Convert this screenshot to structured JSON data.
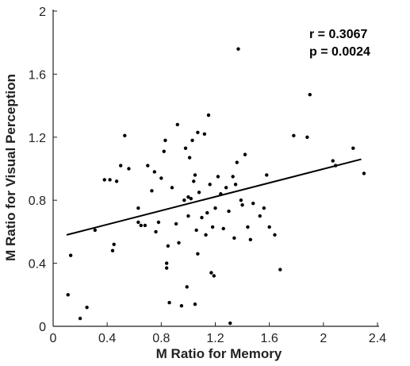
{
  "chart_data": {
    "type": "scatter",
    "title": "",
    "xlabel": "M Ratio for Memory",
    "ylabel": "M Ratio for Visual Perception",
    "xlim": [
      0,
      2.4
    ],
    "ylim": [
      0,
      2
    ],
    "x_ticks": [
      "0",
      "0.4",
      "0.8",
      "1.2",
      "1.6",
      "2",
      "2.4"
    ],
    "y_ticks": [
      "0",
      "0.4",
      "0.8",
      "1.2",
      "1.6",
      "2"
    ],
    "grid": false,
    "annotations": {
      "r": "r = 0.3067",
      "p": "p = 0.0024"
    },
    "regression_line": {
      "x": [
        0.1,
        2.28
      ],
      "y": [
        0.58,
        1.06
      ]
    },
    "points": [
      {
        "x": 0.11,
        "y": 0.2
      },
      {
        "x": 0.2,
        "y": 0.05
      },
      {
        "x": 0.25,
        "y": 0.12
      },
      {
        "x": 0.13,
        "y": 0.45
      },
      {
        "x": 0.31,
        "y": 0.61
      },
      {
        "x": 0.38,
        "y": 0.93
      },
      {
        "x": 0.42,
        "y": 0.93
      },
      {
        "x": 0.44,
        "y": 0.48
      },
      {
        "x": 0.45,
        "y": 0.52
      },
      {
        "x": 0.47,
        "y": 0.92
      },
      {
        "x": 0.5,
        "y": 1.02
      },
      {
        "x": 0.53,
        "y": 1.21
      },
      {
        "x": 0.56,
        "y": 1.0
      },
      {
        "x": 0.63,
        "y": 0.75
      },
      {
        "x": 0.63,
        "y": 0.66
      },
      {
        "x": 0.65,
        "y": 0.64
      },
      {
        "x": 0.68,
        "y": 0.64
      },
      {
        "x": 0.7,
        "y": 1.02
      },
      {
        "x": 0.73,
        "y": 0.86
      },
      {
        "x": 0.75,
        "y": 0.98
      },
      {
        "x": 0.76,
        "y": 0.6
      },
      {
        "x": 0.78,
        "y": 0.66
      },
      {
        "x": 0.8,
        "y": 0.94
      },
      {
        "x": 0.82,
        "y": 1.11
      },
      {
        "x": 0.83,
        "y": 1.18
      },
      {
        "x": 0.84,
        "y": 0.4
      },
      {
        "x": 0.84,
        "y": 0.37
      },
      {
        "x": 0.85,
        "y": 0.51
      },
      {
        "x": 0.86,
        "y": 0.15
      },
      {
        "x": 0.88,
        "y": 0.88
      },
      {
        "x": 0.91,
        "y": 0.65
      },
      {
        "x": 0.92,
        "y": 1.28
      },
      {
        "x": 0.93,
        "y": 0.53
      },
      {
        "x": 0.95,
        "y": 0.13
      },
      {
        "x": 0.97,
        "y": 0.8
      },
      {
        "x": 0.98,
        "y": 1.13
      },
      {
        "x": 0.99,
        "y": 0.25
      },
      {
        "x": 1.0,
        "y": 0.7
      },
      {
        "x": 1.0,
        "y": 0.82
      },
      {
        "x": 1.01,
        "y": 1.07
      },
      {
        "x": 1.02,
        "y": 0.81
      },
      {
        "x": 1.03,
        "y": 1.18
      },
      {
        "x": 1.04,
        "y": 0.92
      },
      {
        "x": 1.05,
        "y": 0.96
      },
      {
        "x": 1.05,
        "y": 0.14
      },
      {
        "x": 1.06,
        "y": 0.61
      },
      {
        "x": 1.07,
        "y": 0.46
      },
      {
        "x": 1.07,
        "y": 1.23
      },
      {
        "x": 1.08,
        "y": 0.85
      },
      {
        "x": 1.1,
        "y": 0.69
      },
      {
        "x": 1.12,
        "y": 1.22
      },
      {
        "x": 1.13,
        "y": 0.58
      },
      {
        "x": 1.14,
        "y": 0.72
      },
      {
        "x": 1.15,
        "y": 1.34
      },
      {
        "x": 1.16,
        "y": 0.9
      },
      {
        "x": 1.17,
        "y": 0.34
      },
      {
        "x": 1.18,
        "y": 0.63
      },
      {
        "x": 1.19,
        "y": 0.32
      },
      {
        "x": 1.2,
        "y": 0.75
      },
      {
        "x": 1.22,
        "y": 0.95
      },
      {
        "x": 1.24,
        "y": 0.84
      },
      {
        "x": 1.26,
        "y": 0.62
      },
      {
        "x": 1.28,
        "y": 0.88
      },
      {
        "x": 1.3,
        "y": 0.73
      },
      {
        "x": 1.31,
        "y": 0.02
      },
      {
        "x": 1.33,
        "y": 0.95
      },
      {
        "x": 1.34,
        "y": 0.56
      },
      {
        "x": 1.35,
        "y": 0.9
      },
      {
        "x": 1.36,
        "y": 1.04
      },
      {
        "x": 1.37,
        "y": 1.76
      },
      {
        "x": 1.39,
        "y": 0.8
      },
      {
        "x": 1.4,
        "y": 0.77
      },
      {
        "x": 1.42,
        "y": 1.09
      },
      {
        "x": 1.44,
        "y": 0.63
      },
      {
        "x": 1.46,
        "y": 0.55
      },
      {
        "x": 1.48,
        "y": 0.78
      },
      {
        "x": 1.53,
        "y": 0.7
      },
      {
        "x": 1.56,
        "y": 0.75
      },
      {
        "x": 1.58,
        "y": 0.96
      },
      {
        "x": 1.6,
        "y": 0.63
      },
      {
        "x": 1.64,
        "y": 0.58
      },
      {
        "x": 1.68,
        "y": 0.36
      },
      {
        "x": 1.78,
        "y": 1.21
      },
      {
        "x": 1.88,
        "y": 1.2
      },
      {
        "x": 1.9,
        "y": 1.47
      },
      {
        "x": 2.07,
        "y": 1.05
      },
      {
        "x": 2.09,
        "y": 1.02
      },
      {
        "x": 2.22,
        "y": 1.13
      },
      {
        "x": 2.3,
        "y": 0.97
      }
    ]
  }
}
